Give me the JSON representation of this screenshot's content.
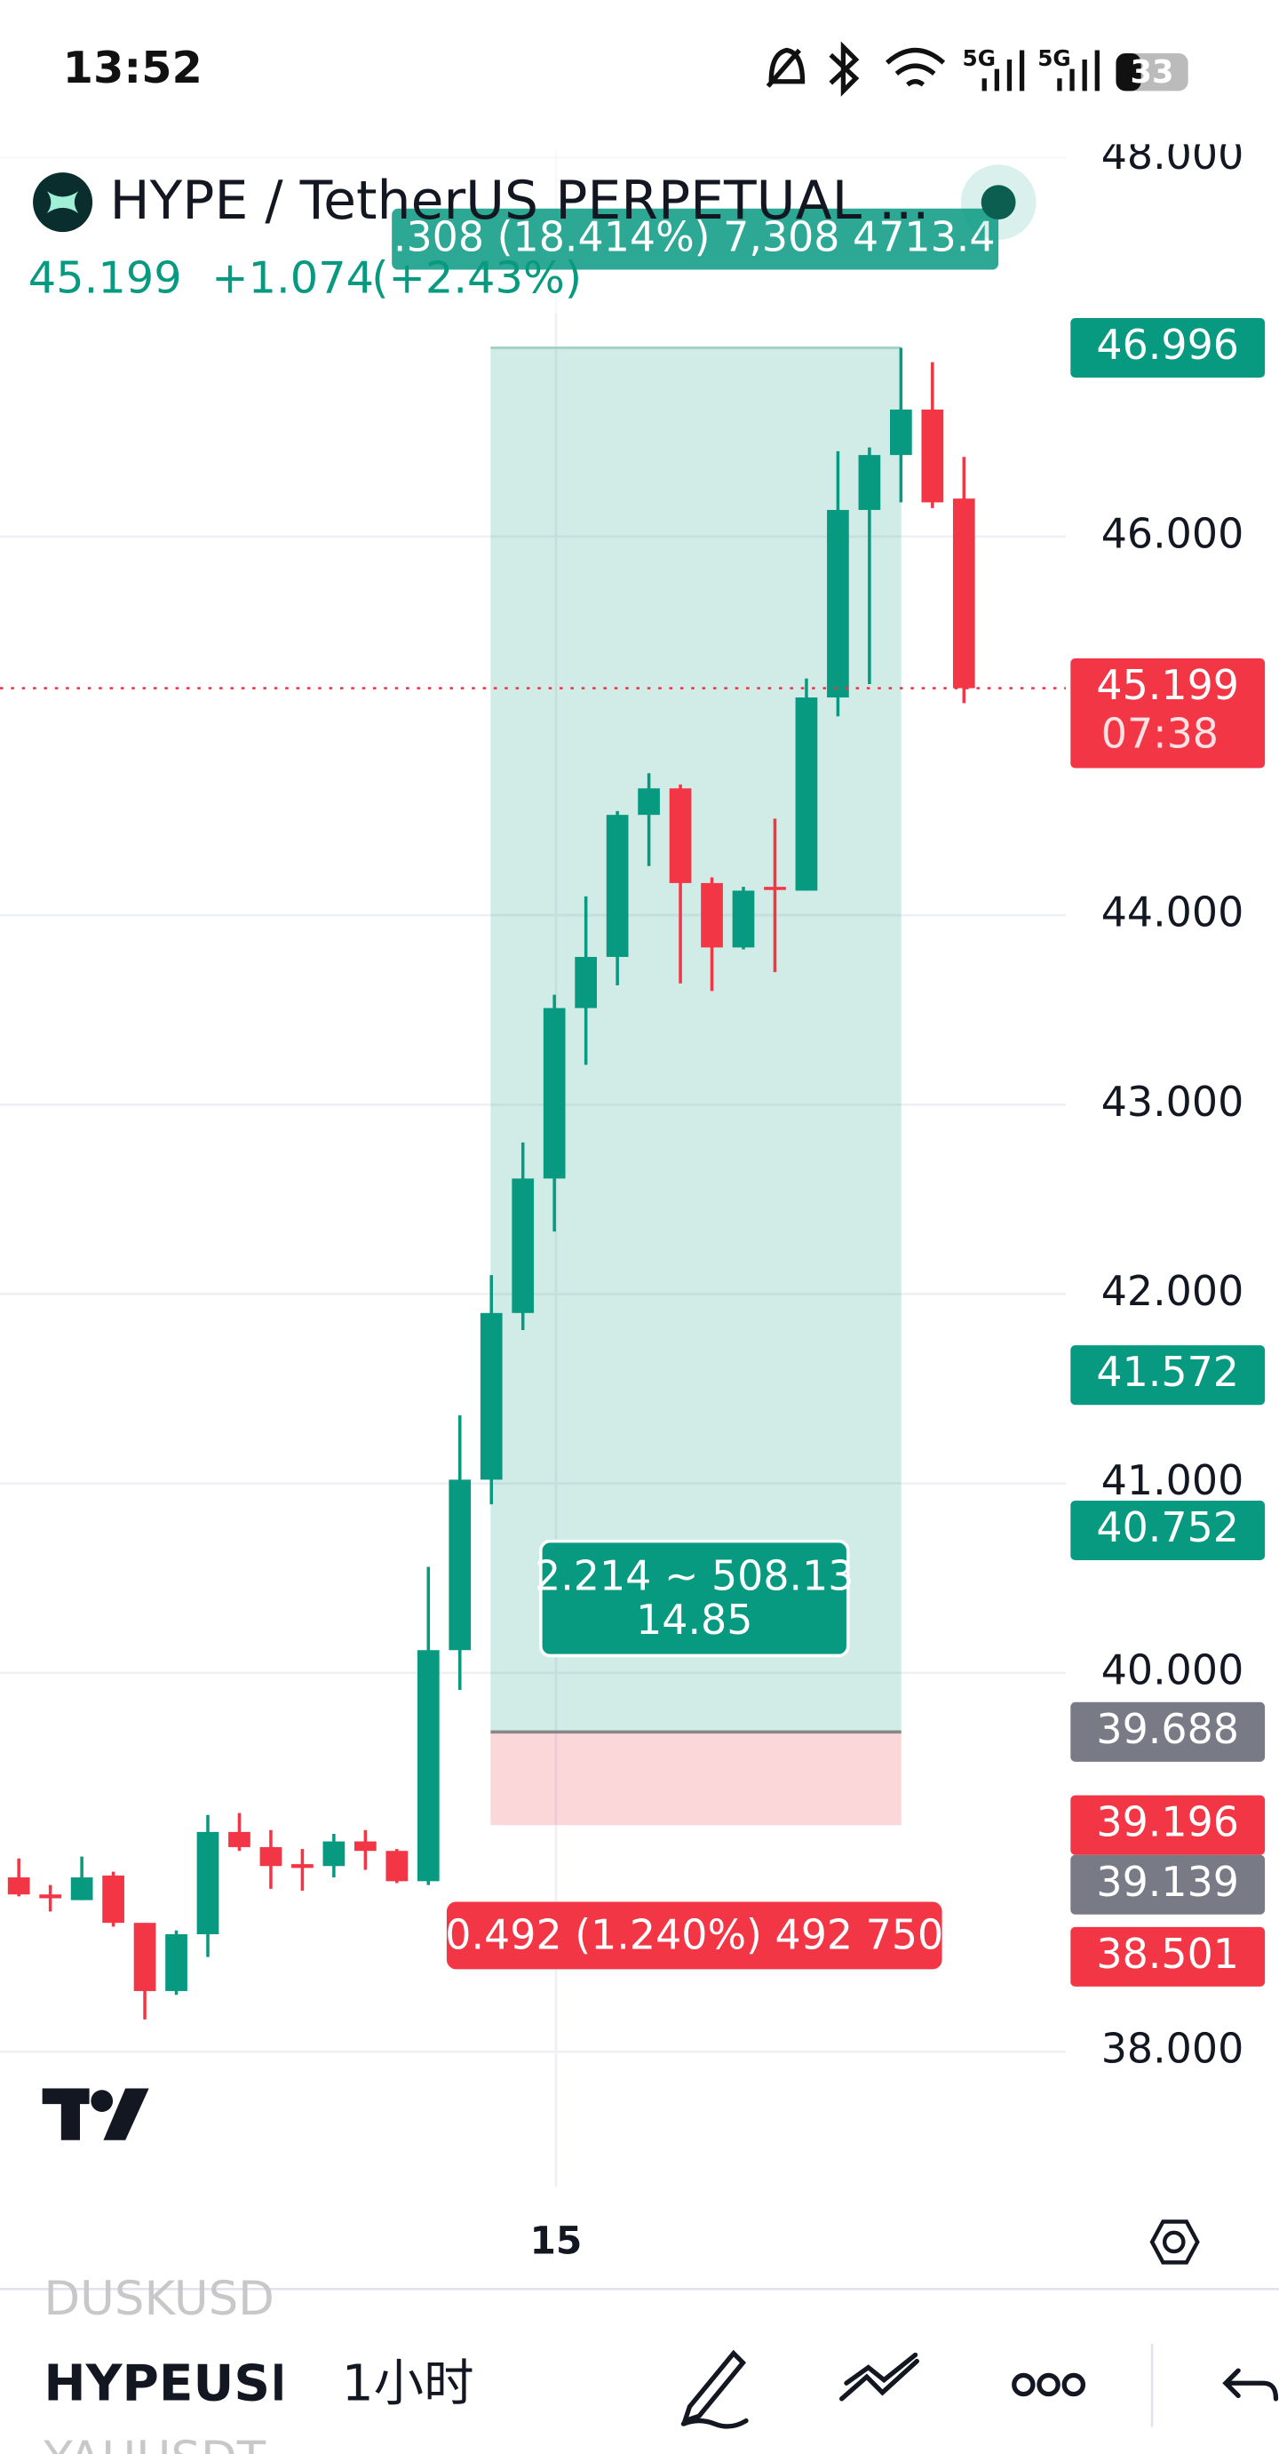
{
  "status_bar": {
    "time": "13:52",
    "network": [
      "5G",
      "5G"
    ],
    "battery": "33"
  },
  "header": {
    "symbol": "HYPE / TetherUS PERPETUAL ...",
    "price": "45.199",
    "change": "+1.074",
    "change_pct": "(+2.43%)"
  },
  "chart_data": {
    "type": "candlestick",
    "categories": [
      null,
      null,
      null,
      null,
      null,
      null,
      null,
      null,
      null,
      null,
      null,
      null,
      null,
      null,
      null,
      null,
      null,
      "15",
      null,
      null,
      null,
      null,
      null,
      null,
      null,
      null,
      null,
      null,
      null,
      null,
      null
    ],
    "open": [
      38.92,
      38.83,
      38.8,
      38.93,
      38.68,
      38.32,
      38.62,
      39.16,
      39.08,
      38.99,
      38.98,
      39.11,
      39.06,
      38.9,
      40.12,
      41.02,
      41.9,
      42.61,
      43.51,
      43.78,
      44.53,
      44.67,
      44.17,
      43.83,
      44.15,
      44.13,
      45.15,
      46.14,
      46.43,
      46.67,
      46.2
    ],
    "high": [
      39.02,
      38.88,
      39.03,
      38.95,
      38.68,
      38.64,
      39.25,
      39.26,
      39.17,
      39.07,
      39.15,
      39.17,
      39.07,
      40.56,
      41.36,
      42.1,
      42.8,
      43.58,
      44.1,
      44.55,
      44.75,
      44.69,
      44.2,
      44.15,
      44.51,
      45.25,
      46.45,
      46.47,
      46.996,
      46.92,
      46.42
    ],
    "low": [
      38.82,
      38.74,
      38.8,
      38.66,
      38.17,
      38.3,
      38.5,
      39.06,
      38.86,
      38.85,
      38.92,
      38.96,
      38.89,
      38.88,
      39.91,
      40.89,
      41.81,
      42.33,
      43.21,
      43.63,
      44.26,
      43.64,
      43.6,
      43.82,
      43.7,
      44.13,
      45.05,
      45.22,
      46.18,
      46.15,
      45.12
    ],
    "close": [
      38.83,
      38.81,
      38.92,
      38.68,
      38.32,
      38.62,
      39.16,
      39.08,
      38.98,
      38.97,
      39.11,
      39.06,
      38.9,
      40.12,
      41.02,
      41.9,
      42.61,
      43.51,
      43.78,
      44.53,
      44.67,
      44.17,
      43.83,
      44.13,
      44.14,
      45.15,
      46.14,
      46.43,
      46.67,
      46.18,
      45.199
    ],
    "up_color": "#089981",
    "down_color": "#f23645",
    "ylim": [
      37.326,
      48.046
    ],
    "yticks": [
      {
        "value": 38,
        "label": "38.000"
      },
      {
        "value": 40,
        "label": "40.000"
      },
      {
        "value": 41,
        "label": "41.000"
      },
      {
        "value": 42,
        "label": "42.000"
      },
      {
        "value": 43,
        "label": "43.000"
      },
      {
        "value": 44,
        "label": "44.000"
      },
      {
        "value": 46,
        "label": "46.000"
      },
      {
        "value": 48,
        "label": "48.000"
      }
    ],
    "grid": true,
    "last_price": 45.199,
    "price_tags": [
      {
        "value": 46.996,
        "color": "#089981"
      },
      {
        "value": 45.199,
        "color": "#f23645",
        "countdown": "07:38"
      },
      {
        "value": 41.572,
        "color": "#089981"
      },
      {
        "value": 40.752,
        "color": "#089981"
      },
      {
        "value": 39.688,
        "color": "#787b86"
      },
      {
        "value": 39.196,
        "color": "#f23645"
      },
      {
        "value": 39.139,
        "color": "#787b86"
      },
      {
        "value": 38.501,
        "color": "#f23645"
      }
    ],
    "position": {
      "target": 46.996,
      "entry": 39.688,
      "stop": 39.196,
      "target_label": ".308 (18.414%) 7,308 4713.4",
      "center_label": [
        "2.214 ~ 508.13",
        "14.85"
      ],
      "stop_label": "0.492 (1.240%) 492 750"
    }
  },
  "toolbar": {
    "symbols": [
      "DUSKUSD",
      "HYPEUSD",
      "YAHUSDT"
    ],
    "interval": "1小时"
  }
}
